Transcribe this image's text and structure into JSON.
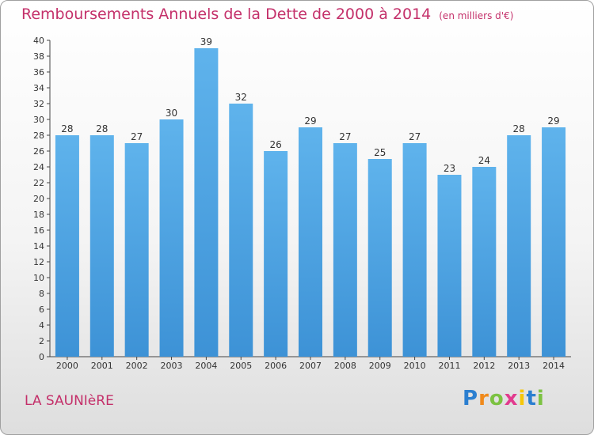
{
  "chart_data": {
    "type": "bar",
    "title": "Remboursements Annuels de la Dette de 2000 à 2014",
    "unit": "(en milliers d'€)",
    "categories": [
      "2000",
      "2001",
      "2002",
      "2003",
      "2004",
      "2005",
      "2006",
      "2007",
      "2008",
      "2009",
      "2010",
      "2011",
      "2012",
      "2013",
      "2014"
    ],
    "values": [
      28,
      28,
      27,
      30,
      39,
      32,
      26,
      29,
      27,
      25,
      27,
      23,
      24,
      28,
      29
    ],
    "ylim": [
      0,
      40
    ],
    "ytick_step": 2,
    "grid": false,
    "bar_color": "#3d92d6"
  },
  "footer": {
    "commune": "LA SAUNIèRE",
    "logo": "Proxiti",
    "logo_colors": [
      "#2b7fd0",
      "#f08a1c",
      "#7cc242",
      "#e23b8e",
      "#f6c70a",
      "#2b7fd0",
      "#7cc242"
    ]
  },
  "colors": {
    "title": "#c4306a",
    "axis": "#444444"
  }
}
